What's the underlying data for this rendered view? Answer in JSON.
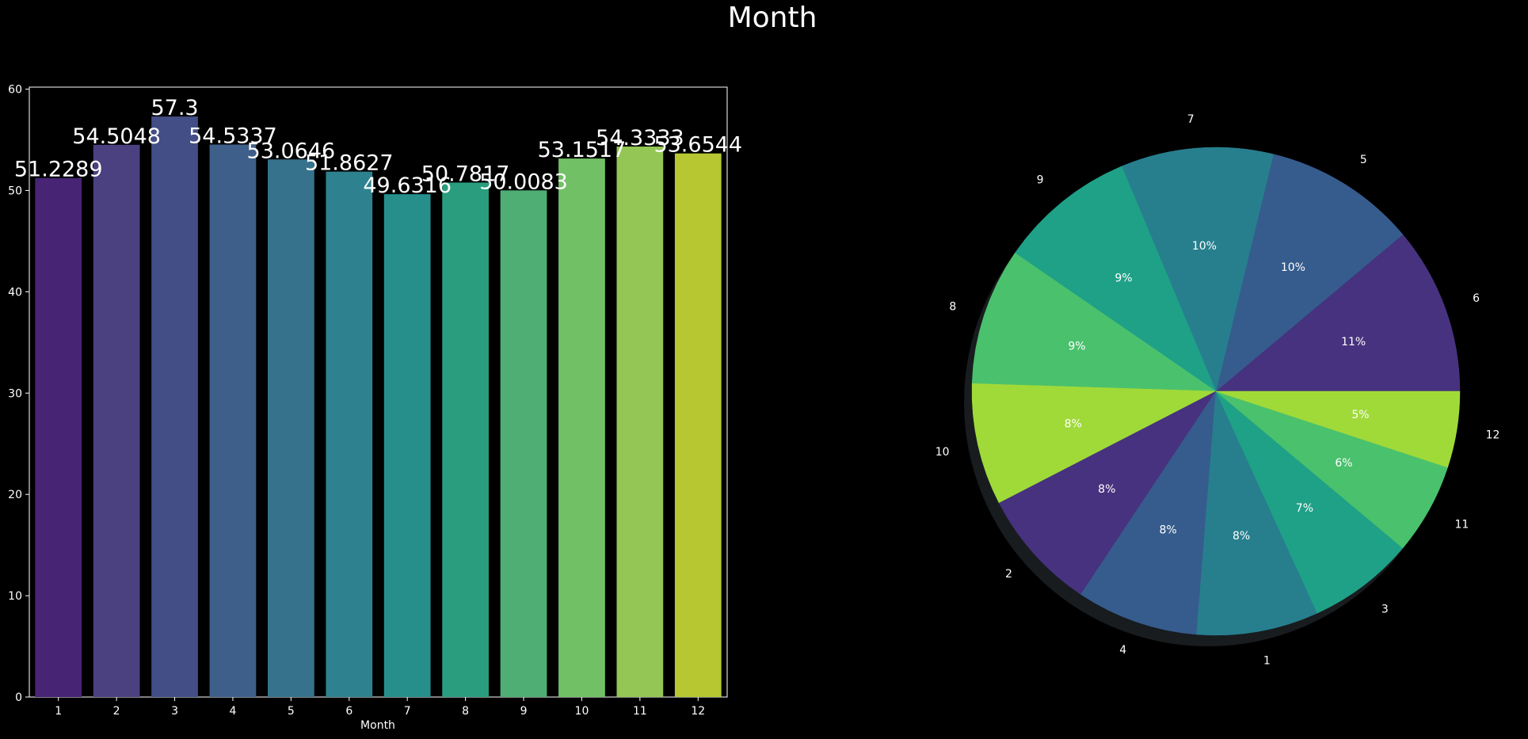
{
  "title": "Month",
  "chart_data": [
    {
      "type": "bar",
      "categories": [
        "1",
        "2",
        "3",
        "4",
        "5",
        "6",
        "7",
        "8",
        "9",
        "10",
        "11",
        "12"
      ],
      "values": [
        51.2289,
        54.5048,
        57.3,
        54.5337,
        53.0646,
        51.8627,
        49.6316,
        50.7817,
        50.0083,
        53.1517,
        54.3333,
        53.6544
      ],
      "data_labels": [
        "51.2289",
        "54.5048",
        "57.3",
        "54.5337",
        "53.0646",
        "51.8627",
        "49.6316",
        "50.7817",
        "50.0083",
        "53.1517",
        "54.3333",
        "53.6544"
      ],
      "xlabel": "Month",
      "ylabel": "",
      "ylim": [
        0,
        60.2
      ],
      "yticks": [
        0,
        10,
        20,
        30,
        40,
        50,
        60
      ],
      "colors": [
        "#482475",
        "#4b4180",
        "#434e86",
        "#3e5f8a",
        "#36728c",
        "#2e818e",
        "#268f8c",
        "#2a9d7e",
        "#4eae73",
        "#72c066",
        "#93c654",
        "#b6c731"
      ],
      "grid": false
    },
    {
      "type": "pie",
      "labels": [
        "6",
        "5",
        "7",
        "9",
        "8",
        "10",
        "2",
        "4",
        "1",
        "3",
        "11",
        "12"
      ],
      "values": [
        11,
        10,
        10,
        9,
        9,
        8,
        8,
        8,
        8,
        7,
        6,
        5
      ],
      "pct_labels": [
        "11%",
        "10%",
        "10%",
        "9%",
        "9%",
        "8%",
        "8%",
        "8%",
        "8%",
        "7%",
        "6%",
        "5%"
      ],
      "colors": [
        "#46327e",
        "#365c8d",
        "#277f8e",
        "#1fa187",
        "#4ac16d",
        "#a0da39",
        "#46327e",
        "#365c8d",
        "#277f8e",
        "#1fa187",
        "#4ac16d",
        "#a0da39"
      ],
      "shadow": true
    }
  ]
}
